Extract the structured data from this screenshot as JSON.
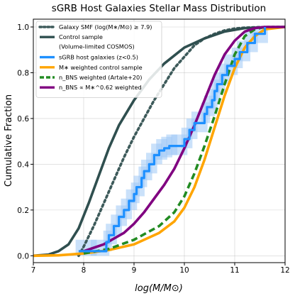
{
  "chart_data": {
    "type": "line",
    "title": "sGRB Host Galaxies Stellar Mass Distribution",
    "xlabel": "log(M/M⊙)",
    "ylabel": "Cumulative Fraction",
    "xlim": [
      7,
      12
    ],
    "ylim": [
      0,
      1.0
    ],
    "xticks": [
      "7",
      "8",
      "9",
      "10",
      "11",
      "12"
    ],
    "yticks": [
      "0.0",
      "0.2",
      "0.4",
      "0.6",
      "0.8",
      "1.0"
    ],
    "grid": true,
    "legend_position": "top-left",
    "series": [
      {
        "name": "Galaxy SMF (log(M*/M⊙) ≥ 7.9)",
        "style": "dotted",
        "color": "#3d5a5a",
        "x": [
          7.9,
          8.0,
          8.2,
          8.4,
          8.6,
          8.8,
          9.0,
          9.2,
          9.4,
          9.6,
          9.8,
          10.0,
          10.2,
          10.4,
          10.6,
          10.8,
          11.0,
          11.2,
          11.5,
          11.8,
          12.0
        ],
        "y": [
          0.0,
          0.04,
          0.13,
          0.23,
          0.33,
          0.43,
          0.52,
          0.6,
          0.68,
          0.75,
          0.82,
          0.87,
          0.92,
          0.95,
          0.97,
          0.985,
          0.993,
          0.997,
          0.999,
          1.0,
          1.0
        ]
      },
      {
        "name": "Control sample\n(Volume-limited COSMOS)",
        "style": "solid",
        "color": "#2f4f4f",
        "x": [
          7.0,
          7.3,
          7.5,
          7.7,
          7.9,
          8.1,
          8.3,
          8.5,
          8.7,
          9.0,
          9.3,
          9.6,
          10.0,
          10.4,
          10.8,
          11.2,
          11.6,
          12.0
        ],
        "y": [
          0.0,
          0.005,
          0.02,
          0.05,
          0.12,
          0.23,
          0.35,
          0.47,
          0.57,
          0.68,
          0.77,
          0.84,
          0.91,
          0.95,
          0.98,
          0.995,
          0.999,
          1.0
        ]
      },
      {
        "name": "sGRB host galaxies (z<0.5)",
        "style": "step",
        "color": "#1e90ff",
        "x": [
          7.9,
          8.2,
          8.45,
          8.5,
          8.6,
          8.7,
          8.8,
          8.9,
          9.0,
          9.05,
          9.15,
          9.2,
          9.3,
          9.4,
          9.5,
          9.6,
          9.7,
          9.8,
          10.0,
          10.1,
          10.2,
          10.4,
          10.45,
          10.55,
          10.6,
          10.65,
          10.75,
          10.85,
          11.0,
          11.1,
          11.25,
          11.4,
          11.6
        ],
        "y": [
          0.02,
          0.02,
          0.06,
          0.09,
          0.13,
          0.17,
          0.2,
          0.24,
          0.27,
          0.3,
          0.34,
          0.37,
          0.4,
          0.44,
          0.46,
          0.47,
          0.48,
          0.48,
          0.51,
          0.55,
          0.58,
          0.62,
          0.65,
          0.68,
          0.72,
          0.75,
          0.79,
          0.83,
          0.86,
          0.89,
          0.93,
          0.97,
          1.0
        ]
      },
      {
        "name": "M* weighted control sample",
        "style": "solid",
        "color": "#ffa500",
        "x": [
          7.0,
          7.5,
          8.0,
          8.5,
          9.0,
          9.5,
          9.8,
          10.0,
          10.2,
          10.4,
          10.6,
          10.8,
          11.0,
          11.2,
          11.4,
          11.6,
          12.0
        ],
        "y": [
          0.0,
          0.002,
          0.01,
          0.025,
          0.05,
          0.1,
          0.15,
          0.21,
          0.3,
          0.42,
          0.56,
          0.7,
          0.82,
          0.91,
          0.96,
          0.99,
          1.0
        ]
      },
      {
        "name": "n_BNS weighted (Artale+20)",
        "style": "dashed",
        "color": "#228b22",
        "x": [
          8.0,
          8.5,
          9.0,
          9.5,
          9.8,
          10.0,
          10.2,
          10.4,
          10.6,
          10.8,
          11.0,
          11.2,
          11.4,
          11.6
        ],
        "y": [
          0.01,
          0.03,
          0.07,
          0.13,
          0.19,
          0.26,
          0.36,
          0.48,
          0.61,
          0.75,
          0.88,
          0.96,
          0.99,
          1.0
        ]
      },
      {
        "name": "n_BNS ∝ M*^0.62 weighted",
        "style": "solid",
        "color": "#800080",
        "x": [
          8.0,
          8.4,
          8.8,
          9.0,
          9.2,
          9.4,
          9.6,
          9.8,
          10.0,
          10.2,
          10.4,
          10.6,
          10.8,
          11.0,
          11.2,
          11.4,
          11.6,
          12.0
        ],
        "y": [
          0.02,
          0.05,
          0.1,
          0.14,
          0.19,
          0.25,
          0.31,
          0.38,
          0.47,
          0.57,
          0.68,
          0.79,
          0.88,
          0.94,
          0.98,
          0.995,
          1.0,
          1.0
        ]
      }
    ]
  },
  "legend": {
    "items": [
      {
        "text": "Galaxy SMF (log(M∗/M⊙) ≥ 7.9)",
        "style": "dotted",
        "color": "#3d5a5a"
      },
      {
        "text": "Control sample",
        "text2": "(Volume-limited COSMOS)",
        "style": "solid",
        "color": "#2f4f4f"
      },
      {
        "text": "sGRB host galaxies (z<0.5)",
        "style": "solid",
        "color": "#1e90ff"
      },
      {
        "text": "M∗ weighted control sample",
        "style": "solid",
        "color": "#ffa500"
      },
      {
        "text": "n_BNS weighted (Artale+20)",
        "style": "dashed",
        "color": "#228b22"
      },
      {
        "text": "n_BNS ∝ M∗^0.62 weighted",
        "style": "solid",
        "color": "#800080"
      }
    ]
  },
  "colors": {
    "band": "#9ec9f5",
    "grid": "#b0b0b0"
  }
}
